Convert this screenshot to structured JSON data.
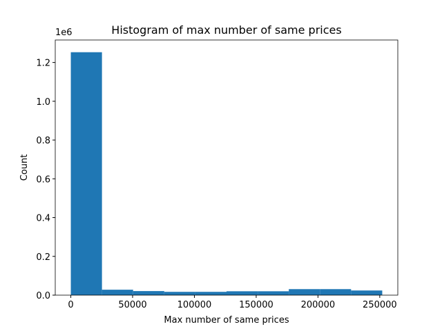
{
  "chart_data": {
    "type": "histogram",
    "title": "Histogram of max number of same prices",
    "x_label": "Max number of same prices",
    "y_label": "Count",
    "y_offset_text": "1e6",
    "bins": [
      0,
      25200,
      50400,
      75600,
      100800,
      126000,
      151200,
      176400,
      201600,
      226800,
      252000
    ],
    "values": [
      1253000,
      28000,
      21000,
      17000,
      17000,
      20000,
      20000,
      31000,
      31000,
      24000
    ],
    "color": "#1f77b4",
    "xlim": [
      -12600,
      264600
    ],
    "xticks": [
      0,
      50000,
      100000,
      150000,
      200000,
      250000
    ],
    "ylim": [
      0,
      1316000
    ],
    "yticks": [
      {
        "value": 0,
        "label": "0.0"
      },
      {
        "value": 200000,
        "label": "0.2"
      },
      {
        "value": 400000,
        "label": "0.4"
      },
      {
        "value": 600000,
        "label": "0.6"
      },
      {
        "value": 800000,
        "label": "0.8"
      },
      {
        "value": 1000000,
        "label": "1.0"
      },
      {
        "value": 1200000,
        "label": "1.2"
      }
    ],
    "grid": false
  }
}
